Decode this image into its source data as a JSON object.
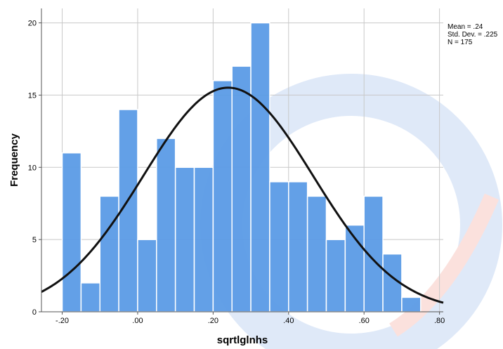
{
  "chart_data": {
    "type": "bar",
    "subtype": "histogram",
    "xlabel": "sqrtlglnhs",
    "ylabel": "Frequency",
    "xlim": [
      -0.255,
      0.81
    ],
    "ylim": [
      0,
      21
    ],
    "bin_width": 0.05,
    "bin_starts": [
      -0.2,
      -0.15,
      -0.1,
      -0.05,
      0.0,
      0.05,
      0.1,
      0.15,
      0.2,
      0.25,
      0.3,
      0.35,
      0.4,
      0.45,
      0.5,
      0.55,
      0.6,
      0.65,
      0.7
    ],
    "values": [
      11,
      2,
      8,
      14,
      5,
      12,
      10,
      10,
      16,
      17,
      20,
      9,
      9,
      8,
      5,
      6,
      8,
      4,
      1
    ],
    "x_ticks": [
      {
        "value": -0.2,
        "label": "-.20"
      },
      {
        "value": 0.0,
        "label": ".00"
      },
      {
        "value": 0.2,
        "label": ".20"
      },
      {
        "value": 0.4,
        "label": ".40"
      },
      {
        "value": 0.6,
        "label": ".60"
      },
      {
        "value": 0.8,
        "label": ".80"
      }
    ],
    "y_ticks": [
      {
        "value": 0,
        "label": "0"
      },
      {
        "value": 5,
        "label": "5"
      },
      {
        "value": 10,
        "label": "10"
      },
      {
        "value": 15,
        "label": "15"
      },
      {
        "value": 20,
        "label": "20"
      }
    ],
    "normal_curve": {
      "mean": 0.24,
      "std_dev": 0.225,
      "n": 175
    },
    "stats": [
      "Mean = .24",
      "Std. Dev. = .225",
      "N = 175"
    ],
    "grid": true,
    "bar_color": "#5b9be6",
    "bar_edge_color": "#ffffff",
    "curve_color": "#111111"
  }
}
